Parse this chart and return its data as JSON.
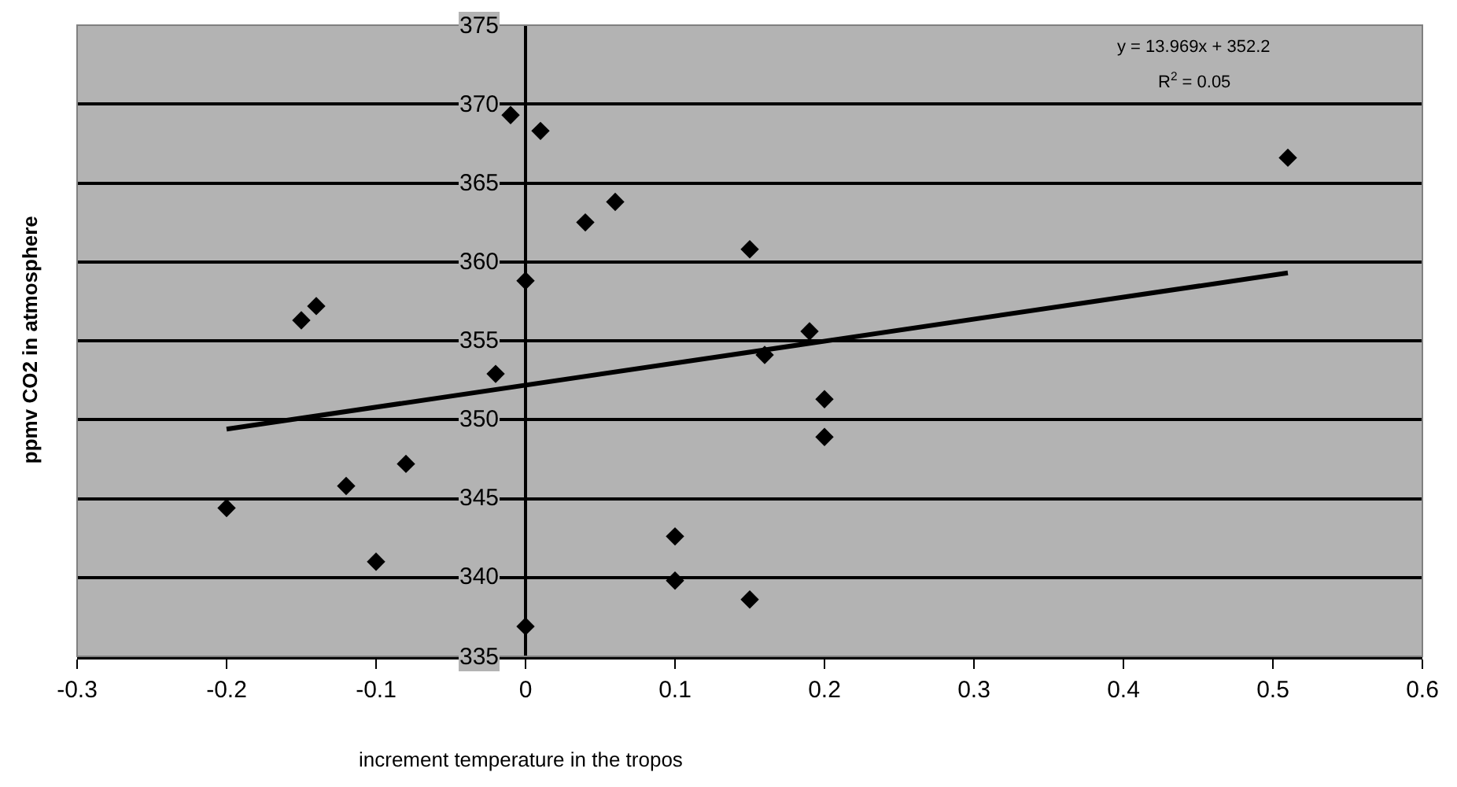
{
  "chart_data": {
    "type": "scatter",
    "xlabel": "increment temperature in the tropos",
    "ylabel": "ppmv CO2 in atmosphere",
    "x": [
      -0.2,
      -0.15,
      -0.14,
      -0.12,
      -0.1,
      -0.08,
      -0.02,
      -0.01,
      0,
      0,
      0.01,
      0.04,
      0.06,
      0.1,
      0.1,
      0.15,
      0.15,
      0.16,
      0.19,
      0.2,
      0.2,
      0.51
    ],
    "series": [
      {
        "color": "#000000",
        "marker": "diamond",
        "values": [
          344.4,
          356.3,
          357.2,
          345.8,
          341.0,
          347.2,
          352.9,
          369.3,
          358.8,
          336.9,
          368.3,
          362.5,
          363.8,
          342.6,
          339.8,
          360.8,
          338.6,
          354.1,
          355.6,
          351.3,
          348.9,
          366.6
        ]
      },
      {
        "type": "line",
        "color": "#000000",
        "marker": "none",
        "x": [
          -0.2,
          0.51
        ],
        "values": [
          349.4,
          359.3
        ]
      }
    ],
    "annotations": [
      "y = 13.969x + 352.2",
      "R$^{2}$ = 0.05"
    ],
    "xlim": [
      -0.3,
      0.6
    ],
    "xticks": [
      -0.3,
      -0.2,
      -0.1,
      0,
      0.1,
      0.2,
      0.3,
      0.4,
      0.5,
      0.6
    ],
    "ylim": [
      335,
      375
    ],
    "yticks": [
      335,
      340,
      345,
      350,
      355,
      360,
      365,
      370,
      375
    ],
    "grid": "y"
  }
}
